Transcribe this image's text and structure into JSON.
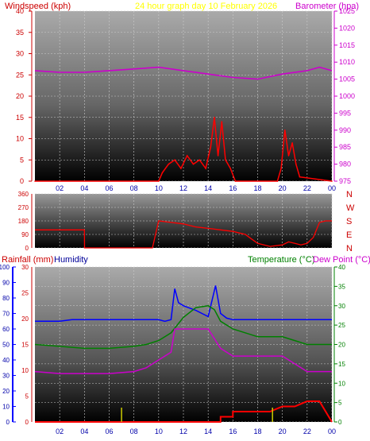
{
  "colors": {
    "wind": "#ff0000",
    "gust": "#ff0000",
    "wind_avg": "#0000cc",
    "wind_low": "#009900",
    "baro": "#cc00cc",
    "direction": "#ff0000",
    "rain": "#ff0000",
    "humidity": "#0000ff",
    "temperature": "#008000",
    "dewpoint": "#cc00cc",
    "rain_rate": "#cccc00",
    "title": "#ffff00",
    "axis_blue": "#0000aa",
    "cardinal": "#cc0000",
    "grid": "#cccccc"
  },
  "header": {
    "left": "Windspeed (kph)",
    "center": "24 hour graph day   10 February 2026",
    "right": "Barometer (hpa)"
  },
  "legend": {
    "rainfall": "Rainfall (mm)",
    "humidity": "Humidity",
    "temperature": "Temperature (°C)",
    "dewpoint": "Dew Point (°C)"
  },
  "x_labels": [
    "02",
    "04",
    "06",
    "08",
    "10",
    "12",
    "14",
    "16",
    "18",
    "20",
    "22",
    "00"
  ],
  "wind_ticks": [
    "0",
    "5",
    "10",
    "15",
    "20",
    "25",
    "30",
    "35",
    "40"
  ],
  "baro_ticks": [
    "975",
    "980",
    "985",
    "990",
    "995",
    "1000",
    "1005",
    "1010",
    "1015",
    "1020",
    "1025"
  ],
  "dir_ticks": [
    "0",
    "90",
    "180",
    "270",
    "360"
  ],
  "cardinals": [
    "N",
    "W",
    "S",
    "E",
    "N"
  ],
  "hum_ticks": [
    "0",
    "10",
    "20",
    "30",
    "40",
    "50",
    "60",
    "70",
    "80",
    "90",
    "100"
  ],
  "rain_ticks": [
    "0",
    "5",
    "10",
    "15",
    "20",
    "25",
    "30"
  ],
  "temp_ticks": [
    "0",
    "5",
    "10",
    "15",
    "20",
    "25",
    "30",
    "35",
    "40"
  ],
  "chart_data": [
    {
      "type": "line",
      "title": "24 hour graph day   10 February 2026",
      "xlabel": "",
      "ylabel": "Windspeed (kph)",
      "y2label": "Barometer (hpa)",
      "ylim": [
        0,
        40
      ],
      "y2lim": [
        975,
        1025
      ],
      "grid": true,
      "series": [
        {
          "name": "Windspeed (kph)",
          "x": [
            0,
            10,
            10.3,
            10.8,
            11.3,
            11.8,
            12.3,
            12.8,
            13.3,
            13.8,
            14.2,
            14.5,
            14.8,
            15.1,
            15.4,
            15.8,
            16.2,
            19.6,
            19.9,
            20.2,
            20.5,
            20.8,
            21.1,
            21.4,
            24
          ],
          "values": [
            0,
            0,
            2,
            4,
            5,
            3,
            6,
            4,
            5,
            3,
            8,
            15,
            6,
            14,
            5,
            3,
            0,
            0,
            3,
            12,
            6,
            9,
            4,
            1,
            0
          ]
        },
        {
          "name": "Barometer (hpa)",
          "x": [
            0,
            2,
            4,
            6,
            8,
            10,
            12,
            14,
            16,
            18,
            20,
            22,
            23,
            24
          ],
          "values": [
            1007.5,
            1007,
            1007,
            1007.5,
            1008,
            1008.5,
            1007.5,
            1006.5,
            1005.5,
            1005,
            1006.5,
            1007.5,
            1008.5,
            1007.5
          ]
        }
      ]
    },
    {
      "type": "scatter",
      "ylabel": "Wind direction",
      "ylim": [
        0,
        360
      ],
      "grid": true,
      "series": [
        {
          "name": "Wind direction",
          "x": [
            0,
            4,
            4.01,
            9.5,
            10,
            11,
            12,
            13,
            14,
            15,
            16,
            17,
            17.5,
            18,
            19,
            20,
            20.5,
            21,
            21.5,
            22,
            22.5,
            23,
            23.5,
            24
          ],
          "values": [
            120,
            120,
            0,
            0,
            180,
            170,
            160,
            140,
            130,
            120,
            110,
            90,
            60,
            30,
            10,
            20,
            40,
            30,
            20,
            30,
            70,
            170,
            180,
            180
          ]
        }
      ]
    },
    {
      "type": "line",
      "ylabel": "Rainfall (mm)",
      "y2label": "Temperature (°C)",
      "ylim": [
        0,
        30
      ],
      "y2lim": [
        0,
        40
      ],
      "grid": true,
      "series": [
        {
          "name": "Humidity",
          "x": [
            0,
            1,
            2,
            3,
            4,
            5,
            6,
            7,
            8,
            9,
            10,
            10.5,
            11,
            11.3,
            11.6,
            12,
            13,
            14,
            14.6,
            15,
            15.5,
            16,
            17,
            18,
            20,
            22,
            23,
            24
          ],
          "values": [
            65,
            65,
            65,
            66,
            66,
            66,
            66,
            66,
            66,
            66,
            66,
            65,
            66,
            86,
            77,
            75,
            72,
            68,
            88,
            70,
            67,
            66,
            66,
            66,
            66,
            66,
            66,
            66
          ]
        },
        {
          "name": "Temperature (°C)",
          "x": [
            0,
            2,
            4,
            6,
            8,
            9,
            10,
            11,
            12,
            13,
            14,
            14.5,
            15,
            16,
            18,
            20,
            21,
            22,
            23,
            24
          ],
          "values": [
            20,
            19.5,
            19,
            19,
            19.5,
            20,
            21,
            23,
            27,
            29.5,
            30,
            29,
            26,
            24,
            22,
            22,
            21,
            20,
            20,
            20
          ]
        },
        {
          "name": "Dew Point (°C)",
          "x": [
            0,
            2,
            4,
            6,
            8,
            9,
            10,
            11,
            11.3,
            12,
            13,
            14,
            15,
            16,
            18,
            20,
            21,
            22,
            23,
            24
          ],
          "values": [
            13,
            12.5,
            12.5,
            12.5,
            13,
            14,
            16,
            18,
            24,
            24,
            24,
            24,
            19,
            17,
            17,
            17,
            15,
            13,
            13,
            13
          ]
        },
        {
          "name": "Rainfall (mm)",
          "x": [
            0,
            15,
            15,
            16,
            16,
            17,
            18,
            19,
            20,
            21,
            22,
            23,
            24
          ],
          "values": [
            0,
            0,
            1,
            1,
            2,
            2,
            2,
            2,
            3,
            3,
            4,
            4,
            0
          ]
        }
      ]
    }
  ]
}
